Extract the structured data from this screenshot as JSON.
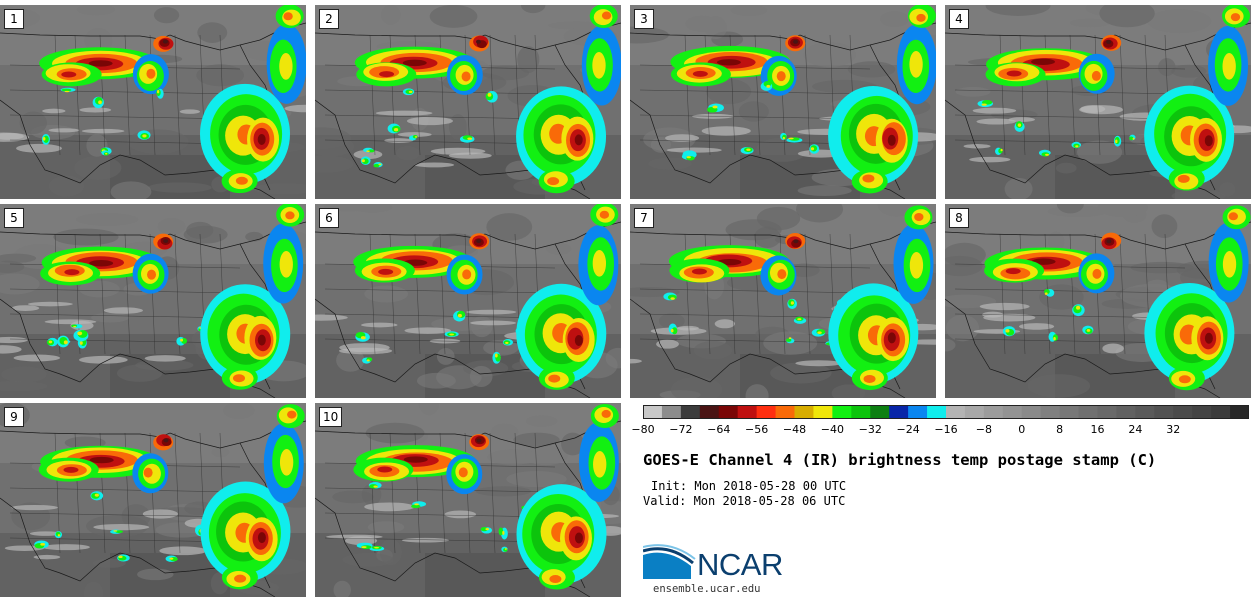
{
  "panels": [
    {
      "label": "1"
    },
    {
      "label": "2"
    },
    {
      "label": "3"
    },
    {
      "label": "4"
    },
    {
      "label": "5"
    },
    {
      "label": "6"
    },
    {
      "label": "7"
    },
    {
      "label": "8"
    },
    {
      "label": "9"
    },
    {
      "label": "10"
    }
  ],
  "colorbar": {
    "colors": [
      "#c8c8c8",
      "#8c8c8c",
      "#3c3c3c",
      "#4a1414",
      "#7a0606",
      "#bf1010",
      "#ff2f10",
      "#f96a08",
      "#d8ad00",
      "#efe60a",
      "#12f012",
      "#0cc40c",
      "#0d7f12",
      "#0825a8",
      "#0a86f0",
      "#10eded",
      "#b4b4b4",
      "#a8a8a8",
      "#9c9c9c",
      "#939393",
      "#8a8a8a",
      "#808080",
      "#787878",
      "#707070",
      "#696969",
      "#616161",
      "#5a5a5a",
      "#525252",
      "#4b4b4b",
      "#444444",
      "#3c3c3c",
      "#282828"
    ],
    "ticks": [
      "−80",
      "−72",
      "−64",
      "−56",
      "−48",
      "−40",
      "−32",
      "−24",
      "−16",
      "−8",
      "0",
      "8",
      "16",
      "24",
      "32"
    ]
  },
  "title": "GOES-E Channel 4 (IR) brightness temp postage stamp (C)",
  "init": "Init: Mon 2018-05-28 00 UTC",
  "valid": "Valid: Mon 2018-05-28 06 UTC",
  "logo": {
    "text": "NCAR",
    "color": "#0b3f6e"
  },
  "site": "ensemble.ucar.edu"
}
